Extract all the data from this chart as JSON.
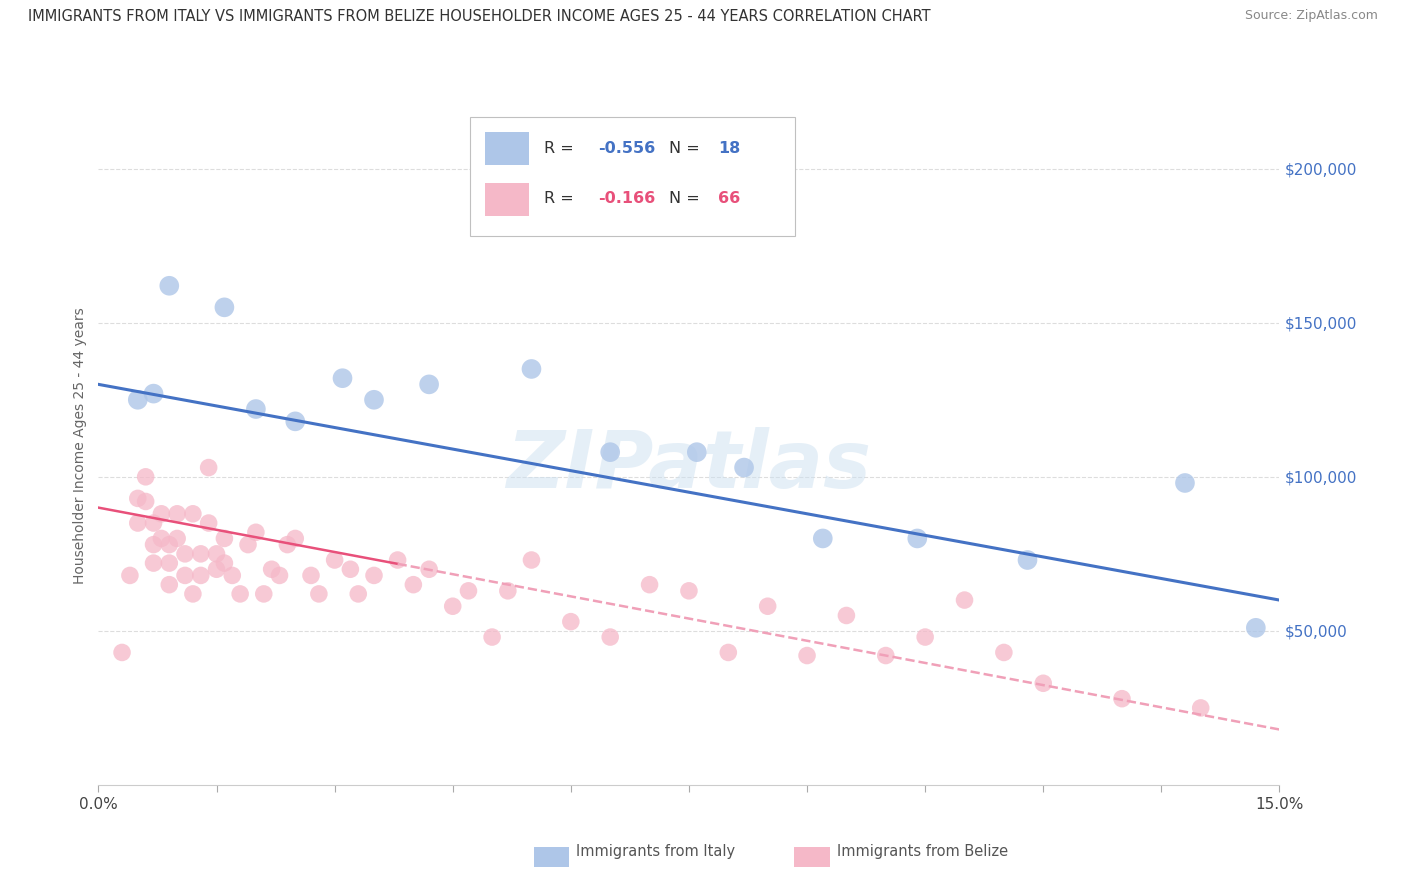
{
  "title": "IMMIGRANTS FROM ITALY VS IMMIGRANTS FROM BELIZE HOUSEHOLDER INCOME AGES 25 - 44 YEARS CORRELATION CHART",
  "source": "Source: ZipAtlas.com",
  "ylabel": "Householder Income Ages 25 - 44 years",
  "xlim": [
    0.0,
    0.15
  ],
  "ylim": [
    0,
    220000
  ],
  "yticks": [
    50000,
    100000,
    150000,
    200000
  ],
  "ytick_labels": [
    "$50,000",
    "$100,000",
    "$150,000",
    "$200,000"
  ],
  "xticks": [
    0.0,
    0.015,
    0.03,
    0.045,
    0.06,
    0.075,
    0.09,
    0.105,
    0.12,
    0.135,
    0.15
  ],
  "xtick_labels": [
    "0.0%",
    "",
    "",
    "",
    "",
    "",
    "",
    "",
    "",
    "",
    "15.0%"
  ],
  "italy_color": "#aec6e8",
  "italy_edge": "#aec6e8",
  "belize_color": "#f5b8c8",
  "belize_edge": "#f5b8c8",
  "line_italy_color": "#4472c4",
  "line_belize_color": "#e8507a",
  "line_belize_dashed_color": "#f0a0b8",
  "watermark": "ZIPatlas",
  "italy_x": [
    0.005,
    0.007,
    0.009,
    0.016,
    0.02,
    0.025,
    0.031,
    0.035,
    0.042,
    0.055,
    0.065,
    0.076,
    0.082,
    0.092,
    0.104,
    0.118,
    0.138,
    0.147
  ],
  "italy_y": [
    125000,
    127000,
    162000,
    155000,
    122000,
    118000,
    132000,
    125000,
    130000,
    135000,
    108000,
    108000,
    103000,
    80000,
    80000,
    73000,
    98000,
    51000
  ],
  "belize_x": [
    0.003,
    0.004,
    0.005,
    0.005,
    0.006,
    0.006,
    0.007,
    0.007,
    0.007,
    0.008,
    0.008,
    0.009,
    0.009,
    0.009,
    0.01,
    0.01,
    0.011,
    0.011,
    0.012,
    0.012,
    0.013,
    0.013,
    0.014,
    0.014,
    0.015,
    0.015,
    0.016,
    0.016,
    0.017,
    0.018,
    0.019,
    0.02,
    0.021,
    0.022,
    0.023,
    0.024,
    0.025,
    0.027,
    0.028,
    0.03,
    0.032,
    0.033,
    0.035,
    0.038,
    0.04,
    0.042,
    0.045,
    0.047,
    0.05,
    0.052,
    0.055,
    0.06,
    0.065,
    0.07,
    0.075,
    0.08,
    0.085,
    0.09,
    0.095,
    0.1,
    0.105,
    0.11,
    0.115,
    0.12,
    0.13,
    0.14
  ],
  "belize_y": [
    43000,
    68000,
    93000,
    85000,
    100000,
    92000,
    85000,
    78000,
    72000,
    88000,
    80000,
    78000,
    72000,
    65000,
    88000,
    80000,
    75000,
    68000,
    62000,
    88000,
    75000,
    68000,
    103000,
    85000,
    75000,
    70000,
    72000,
    80000,
    68000,
    62000,
    78000,
    82000,
    62000,
    70000,
    68000,
    78000,
    80000,
    68000,
    62000,
    73000,
    70000,
    62000,
    68000,
    73000,
    65000,
    70000,
    58000,
    63000,
    48000,
    63000,
    73000,
    53000,
    48000,
    65000,
    63000,
    43000,
    58000,
    42000,
    55000,
    42000,
    48000,
    60000,
    43000,
    33000,
    28000,
    25000
  ]
}
